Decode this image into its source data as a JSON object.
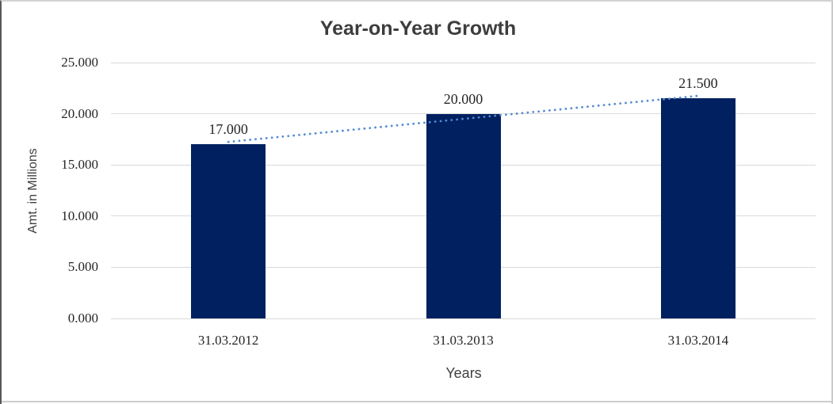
{
  "chart_data": {
    "type": "bar",
    "title": "Year-on-Year Growth",
    "categories": [
      "31.03.2012",
      "31.03.2013",
      "31.03.2014"
    ],
    "values": [
      17.0,
      20.0,
      21.5
    ],
    "data_labels": [
      "17.000",
      "20.000",
      "21.500"
    ],
    "xlabel": "Years",
    "ylabel": "Amt. in Millions",
    "ylim": [
      0,
      25
    ],
    "ytick_values": [
      25,
      20,
      15,
      10,
      5,
      0
    ],
    "ytick_labels": [
      "25.000",
      "20.000",
      "15.000",
      "10.000",
      "5.000",
      "0.000"
    ],
    "grid": true,
    "legend": "none",
    "bar_color": "#002060",
    "gridline_color": "#d9d9d9",
    "trendline": {
      "type": "linear",
      "style": "dotted",
      "color": "#538ad0",
      "y_start": 17.25,
      "y_end": 21.75
    }
  }
}
